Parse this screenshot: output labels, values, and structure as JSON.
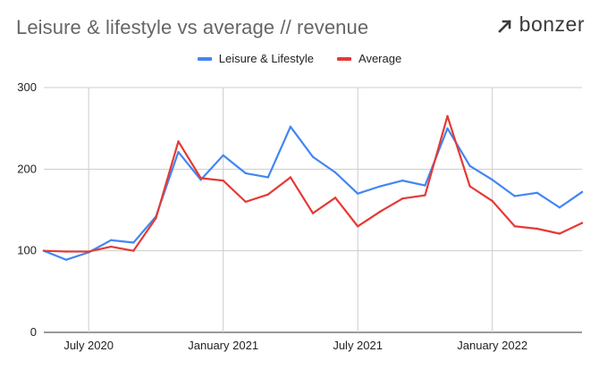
{
  "title": "Leisure & lifestyle vs average // revenue",
  "logo": {
    "text": "bonzer",
    "icon": "bonzer-logo-icon"
  },
  "chart_data": {
    "type": "line",
    "x": [
      "2020-05",
      "2020-06",
      "2020-07",
      "2020-08",
      "2020-09",
      "2020-10",
      "2020-11",
      "2020-12",
      "2021-01",
      "2021-02",
      "2021-03",
      "2021-04",
      "2021-05",
      "2021-06",
      "2021-07",
      "2021-08",
      "2021-09",
      "2021-10",
      "2021-11",
      "2021-12",
      "2022-01",
      "2022-02",
      "2022-03",
      "2022-04",
      "2022-05"
    ],
    "series": [
      {
        "name": "Leisure & Lifestyle",
        "color": "#4285f4",
        "values": [
          100,
          89,
          98,
          113,
          110,
          142,
          221,
          187,
          217,
          195,
          190,
          252,
          215,
          196,
          170,
          179,
          186,
          180,
          250,
          204,
          187,
          167,
          171,
          153,
          172
        ]
      },
      {
        "name": "Average",
        "color": "#e53935",
        "values": [
          100,
          99,
          99,
          105,
          100,
          140,
          234,
          189,
          186,
          160,
          169,
          190,
          146,
          165,
          130,
          148,
          164,
          168,
          265,
          179,
          161,
          130,
          127,
          121,
          134
        ]
      }
    ],
    "x_tick_labels": [
      {
        "x": "2020-07",
        "label": "July 2020"
      },
      {
        "x": "2021-01",
        "label": "January 2021"
      },
      {
        "x": "2021-07",
        "label": "July 2021"
      },
      {
        "x": "2022-01",
        "label": "January 2022"
      }
    ],
    "y_ticks": [
      0,
      100,
      200,
      300
    ],
    "ylim": [
      0,
      300
    ],
    "grid": true,
    "legend_position": "top-center",
    "xlabel": "",
    "ylabel": ""
  }
}
